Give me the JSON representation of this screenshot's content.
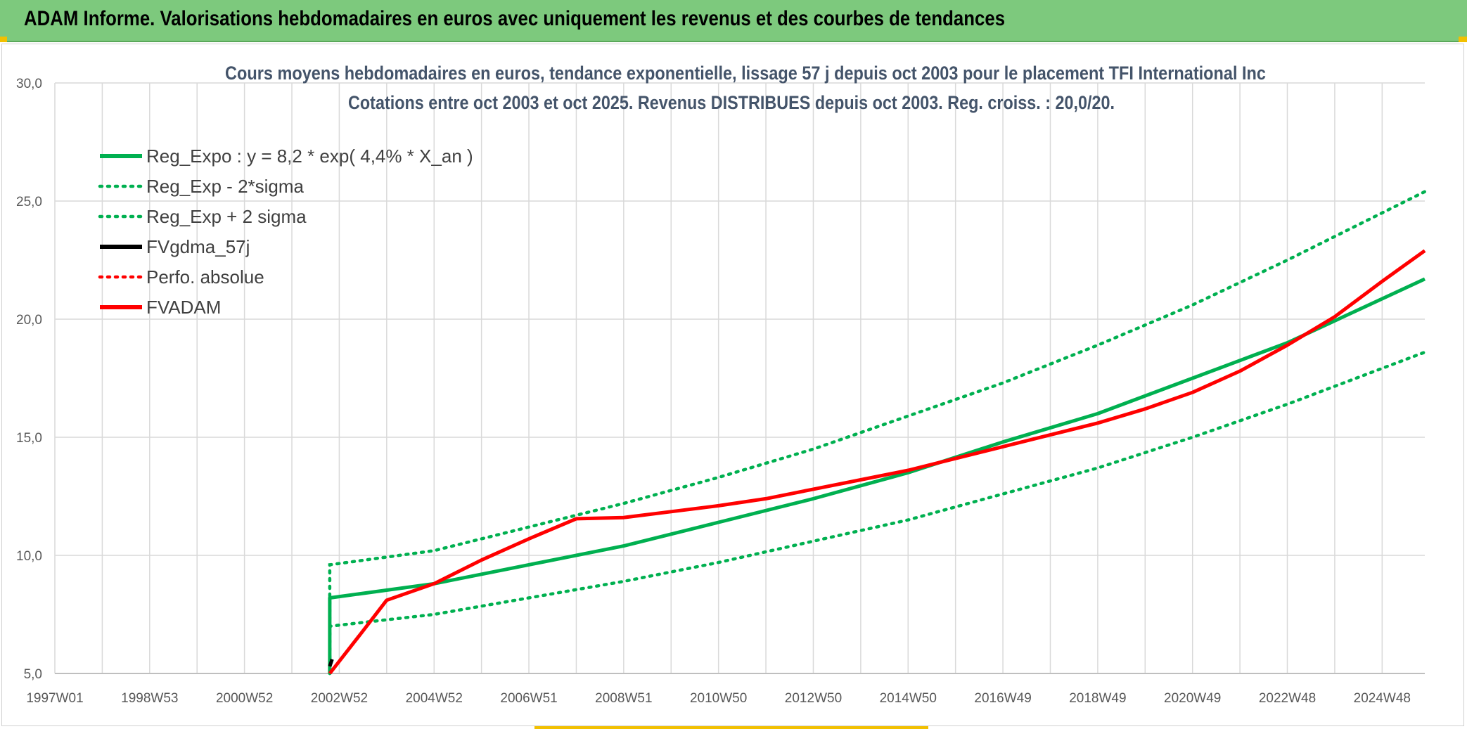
{
  "banner": {
    "title": "ADAM Informe. Valorisations hebdomadaires en euros avec uniquement les revenus et des courbes de tendances"
  },
  "colors": {
    "green": "#00b050",
    "red": "#ff0000",
    "black": "#000000",
    "banner": "#7dc97d",
    "accent": "#f2c000"
  },
  "chart_data": {
    "type": "line",
    "title": "Cours moyens hebdomadaires en euros, tendance exponentielle, lissage 57 j depuis oct 2003 pour le placement TFI International Inc",
    "subtitle": "Cotations entre oct 2003 et oct 2025. Revenus DISTRIBUES depuis oct 2003. Reg. croiss. : 20,0/20.",
    "xlabel": "",
    "ylabel": "",
    "x_range": [
      1997.0,
      2025.9
    ],
    "x_tick_labels": [
      "1997W01",
      "1998W53",
      "2000W52",
      "2002W52",
      "2004W52",
      "2006W51",
      "2008W51",
      "2010W50",
      "2012W50",
      "2014W50",
      "2016W49",
      "2018W49",
      "2020W49",
      "2022W48",
      "2024W48"
    ],
    "x_tick_positions": [
      1997.0,
      1999.0,
      2001.0,
      2003.0,
      2005.0,
      2007.0,
      2009.0,
      2011.0,
      2013.0,
      2015.0,
      2017.0,
      2019.0,
      2021.0,
      2023.0,
      2025.0
    ],
    "ylim": [
      5.0,
      30.0
    ],
    "y_ticks": [
      "5,0",
      "10,0",
      "15,0",
      "20,0",
      "25,0",
      "30,0"
    ],
    "y_tick_values": [
      5,
      10,
      15,
      20,
      25,
      30
    ],
    "grid": true,
    "legend_position": "top-left",
    "series": [
      {
        "name": "Reg_Expo : y = 8,2 * exp( 4,4% *  X_an )",
        "style": "solid",
        "color": "#00b050",
        "x": [
          2002.8,
          2002.8,
          2005,
          2007,
          2009,
          2011,
          2013,
          2015,
          2017,
          2019,
          2021,
          2023,
          2025.9
        ],
        "y": [
          5.0,
          8.2,
          8.8,
          9.6,
          10.4,
          11.4,
          12.4,
          13.5,
          14.8,
          16.0,
          17.5,
          19.0,
          21.7
        ]
      },
      {
        "name": "Reg_Exp - 2*sigma",
        "style": "dotted",
        "color": "#00b050",
        "x": [
          2002.8,
          2002.8,
          2005,
          2007,
          2009,
          2011,
          2013,
          2015,
          2017,
          2019,
          2021,
          2023,
          2025.9
        ],
        "y": [
          5.0,
          7.0,
          7.5,
          8.2,
          8.9,
          9.7,
          10.6,
          11.5,
          12.6,
          13.7,
          15.0,
          16.4,
          18.6
        ]
      },
      {
        "name": "Reg_Exp + 2 sigma",
        "style": "dotted",
        "color": "#00b050",
        "x": [
          2002.8,
          2002.8,
          2005,
          2007,
          2009,
          2011,
          2013,
          2015,
          2017,
          2019,
          2021,
          2023,
          2025.9
        ],
        "y": [
          5.0,
          9.6,
          10.2,
          11.2,
          12.2,
          13.3,
          14.5,
          15.9,
          17.3,
          18.9,
          20.6,
          22.5,
          25.4
        ]
      },
      {
        "name": "FVgdma_57j",
        "style": "solid",
        "color": "#000000",
        "x": [
          2002.8,
          2002.85
        ],
        "y": [
          5.3,
          5.6
        ]
      },
      {
        "name": "Perfo. absolue",
        "style": "dotted",
        "color": "#ff0000",
        "x": [],
        "y": []
      },
      {
        "name": "FVADAM",
        "style": "solid",
        "color": "#ff0000",
        "x": [
          2002.8,
          2003.5,
          2004.0,
          2005.0,
          2006.0,
          2007.0,
          2008.0,
          2009.0,
          2010.0,
          2011.0,
          2012.0,
          2013.0,
          2014.0,
          2015.0,
          2016.0,
          2017.0,
          2018.0,
          2019.0,
          2020.0,
          2021.0,
          2022.0,
          2023.0,
          2024.0,
          2025.0,
          2025.9
        ],
        "y": [
          5.0,
          6.8,
          8.1,
          8.8,
          9.8,
          10.7,
          11.55,
          11.6,
          11.85,
          12.1,
          12.4,
          12.8,
          13.2,
          13.6,
          14.1,
          14.6,
          15.1,
          15.6,
          16.2,
          16.9,
          17.8,
          18.9,
          20.1,
          21.6,
          22.9
        ]
      }
    ]
  }
}
